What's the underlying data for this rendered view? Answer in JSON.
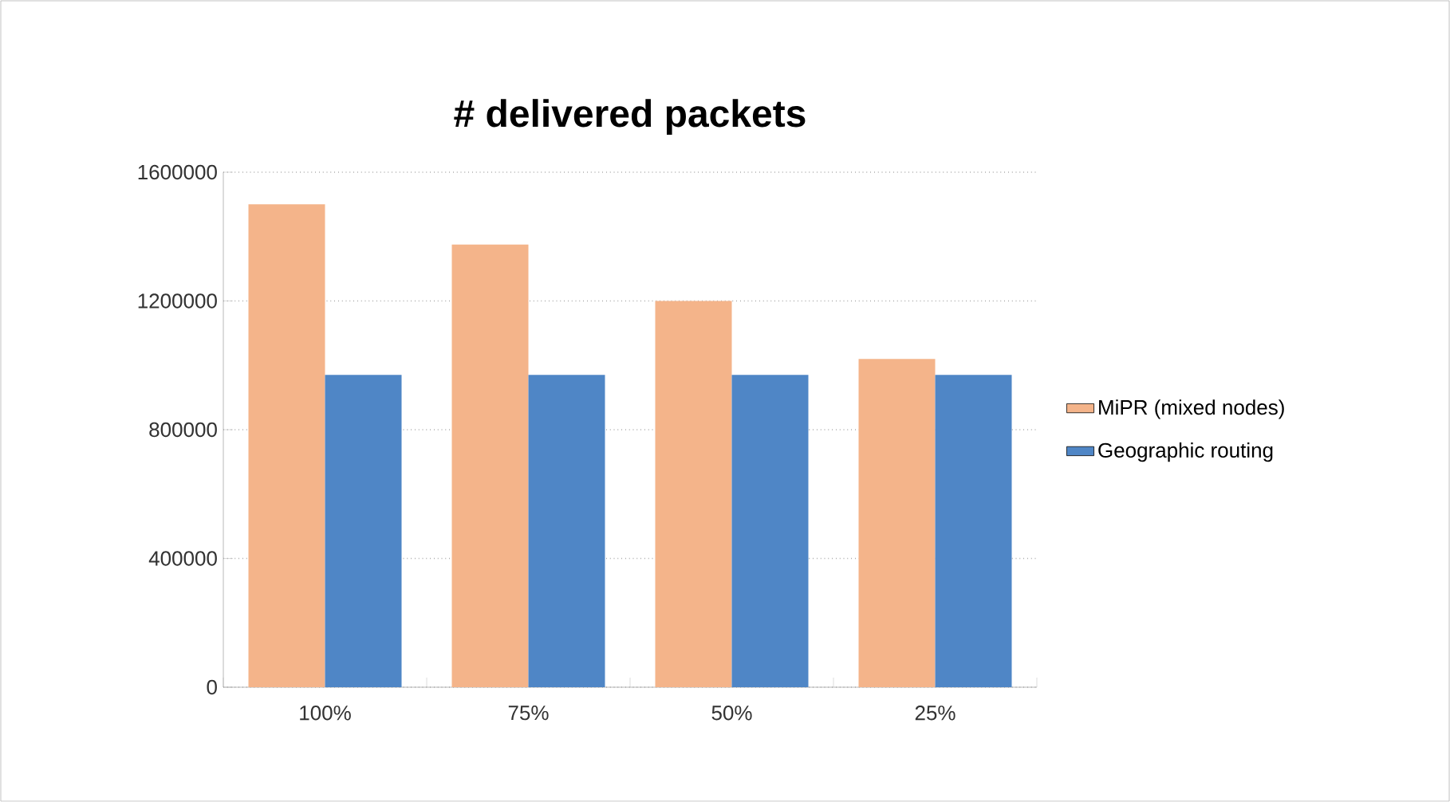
{
  "chart_data": {
    "type": "bar",
    "title": "# delivered packets",
    "categories": [
      "100%",
      "75%",
      "50%",
      "25%"
    ],
    "series": [
      {
        "name": "MiPR (mixed nodes)",
        "color": "#f4b48a",
        "values": [
          1500000,
          1375000,
          1200000,
          1020000
        ]
      },
      {
        "name": "Geographic routing",
        "color": "#4f86c6",
        "values": [
          970000,
          970000,
          970000,
          970000
        ]
      }
    ],
    "ylim": [
      0,
      1600000
    ],
    "yticks": [
      0,
      400000,
      800000,
      1200000,
      1600000
    ],
    "grid": "y",
    "legend": "right"
  }
}
